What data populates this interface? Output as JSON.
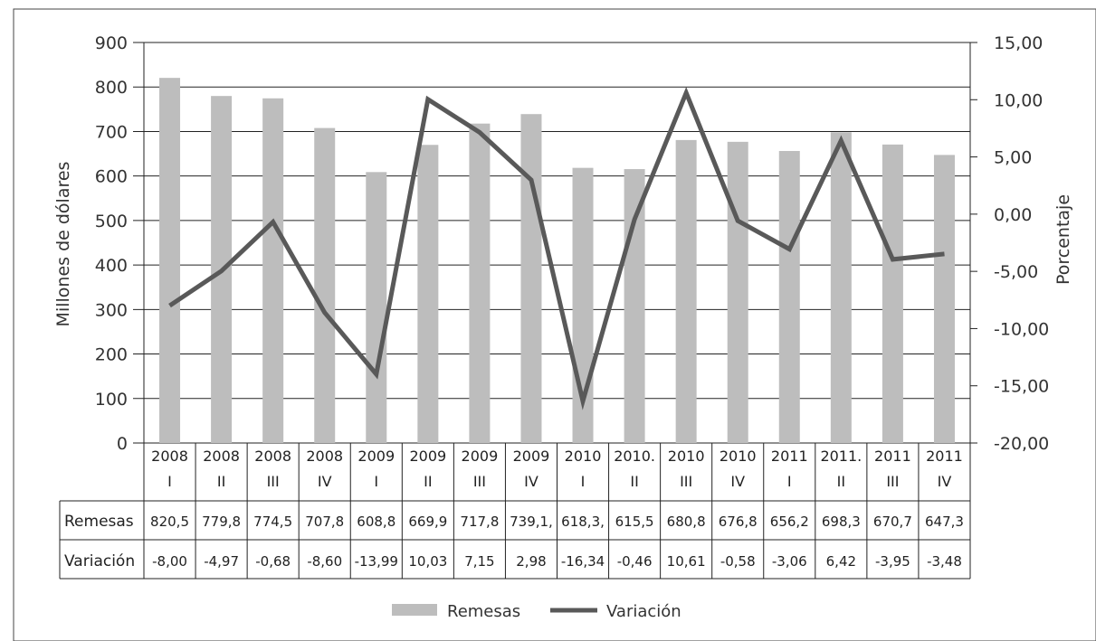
{
  "chart_data": {
    "type": "bar",
    "categories": [
      [
        "2008",
        "I"
      ],
      [
        "2008",
        "II"
      ],
      [
        "2008",
        "III"
      ],
      [
        "2008",
        "IV"
      ],
      [
        "2009",
        "I"
      ],
      [
        "2009",
        "II"
      ],
      [
        "2009",
        "III"
      ],
      [
        "2009",
        "IV"
      ],
      [
        "2010",
        "I"
      ],
      [
        "2010.",
        "II"
      ],
      [
        "2010",
        "III"
      ],
      [
        "2010",
        "IV"
      ],
      [
        "2011",
        "I"
      ],
      [
        "2011.",
        "II"
      ],
      [
        "2011",
        "III"
      ],
      [
        "2011",
        "IV"
      ]
    ],
    "series": [
      {
        "name": "Remesas",
        "type": "bar",
        "axis": "left",
        "color": "#bdbdbd",
        "values": [
          820.5,
          779.8,
          774.5,
          707.8,
          608.8,
          669.9,
          717.8,
          739.1,
          618.3,
          615.5,
          680.8,
          676.8,
          656.2,
          698.3,
          670.7,
          647.3
        ]
      },
      {
        "name": "Variación",
        "type": "line",
        "axis": "right",
        "color": "#595959",
        "values": [
          -8.0,
          -4.97,
          -0.68,
          -8.6,
          -13.99,
          10.03,
          7.15,
          2.98,
          -16.34,
          -0.46,
          10.61,
          -0.58,
          -3.06,
          6.42,
          -3.95,
          -3.48
        ]
      }
    ],
    "ylabel": "Millones de dólares",
    "y2label": "Porcentaje",
    "ylim": [
      0,
      900
    ],
    "y2lim": [
      -20,
      15
    ],
    "yticks": [
      "0",
      "100",
      "200",
      "300",
      "400",
      "500",
      "600",
      "700",
      "800",
      "900"
    ],
    "y2ticks": [
      "-20,00",
      "-15,00",
      "-10,00",
      "-5,00",
      "0,00",
      "5,00",
      "10,00",
      "15,00"
    ],
    "grid": true,
    "legend_position": "bottom",
    "table": {
      "rows": [
        {
          "label": "Remesas",
          "cells": [
            "820,5",
            "779,8",
            "774,5",
            "707,8",
            "608,8",
            "669,9",
            "717,8",
            "739,1,",
            "618,3,",
            "615,5",
            "680,8",
            "676,8",
            "656,2",
            "698,3",
            "670,7",
            "647,3"
          ]
        },
        {
          "label": "Variación",
          "cells": [
            "-8,00",
            "-4,97",
            "-0,68",
            "-8,60",
            "-13,99",
            "10,03",
            "7,15",
            "2,98",
            "-16,34",
            "-0,46",
            "10,61",
            "-0,58",
            "-3,06",
            "6,42",
            "-3,95",
            "-3,48"
          ]
        }
      ]
    }
  }
}
